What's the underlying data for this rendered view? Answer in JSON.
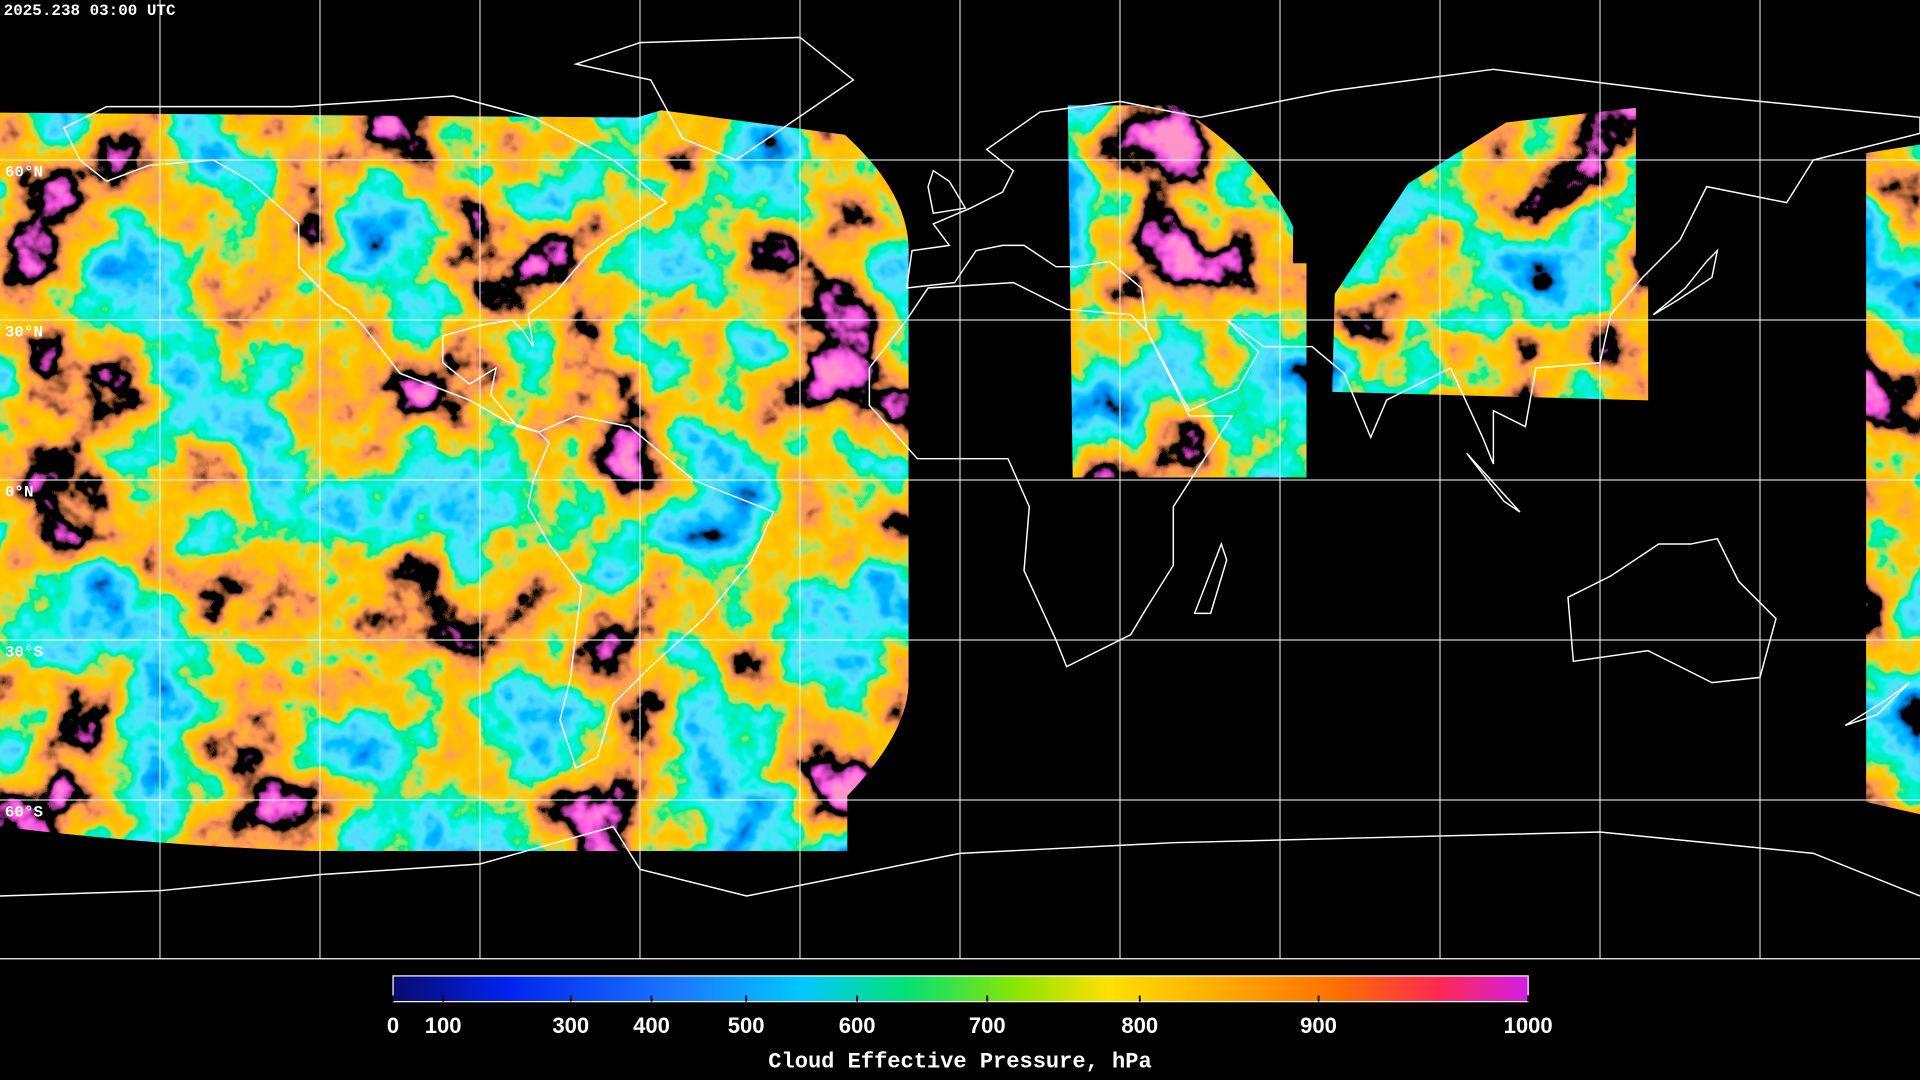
{
  "header": {
    "timestamp": "2025.238 03:00 UTC"
  },
  "map": {
    "latitude_labels": [
      {
        "value": 60,
        "label": "60°N"
      },
      {
        "value": 30,
        "label": "30°N"
      },
      {
        "value": 0,
        "label": "0°N"
      },
      {
        "value": -30,
        "label": "30°S"
      },
      {
        "value": -60,
        "label": "60°S"
      }
    ]
  },
  "colorbar": {
    "title": "Cloud Effective Pressure, hPa",
    "range": [
      0,
      1000
    ],
    "ticks": [
      0,
      100,
      300,
      400,
      500,
      600,
      700,
      800,
      900,
      1000
    ]
  }
}
